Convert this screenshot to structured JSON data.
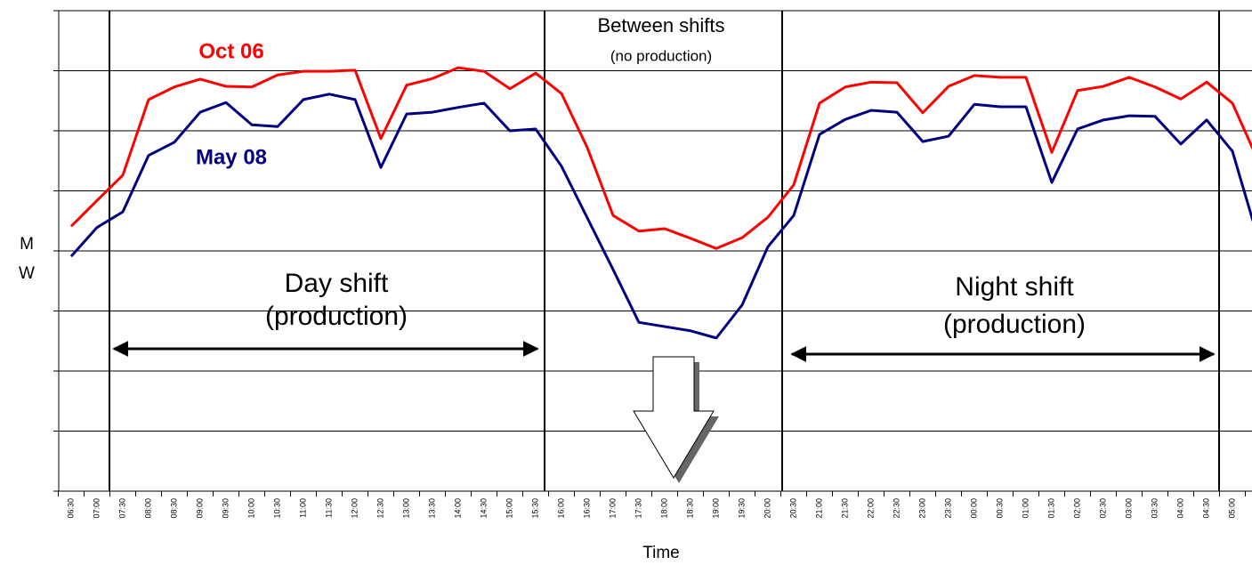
{
  "chart_data": {
    "type": "line",
    "xlabel": "Time",
    "ylabel": [
      "M",
      "W"
    ],
    "categories": [
      "06:30",
      "07:00",
      "07:30",
      "08:00",
      "08:30",
      "09:00",
      "09:30",
      "10:00",
      "10:30",
      "11:00",
      "11:30",
      "12:00",
      "12:30",
      "13:00",
      "13:30",
      "14:00",
      "14:30",
      "15:00",
      "15:30",
      "16:00",
      "16:30",
      "17:00",
      "17:30",
      "18:00",
      "18:30",
      "19:00",
      "19:30",
      "20:00",
      "20:30",
      "21:00",
      "21:30",
      "22:00",
      "22:30",
      "23:00",
      "23:30",
      "00:00",
      "00:30",
      "01:00",
      "01:30",
      "02:00",
      "02:30",
      "03:00",
      "03:30",
      "04:00",
      "04:30",
      "05:00",
      null
    ],
    "series": [
      {
        "name": "Oct 06",
        "color": "#ff0000",
        "values": [
          4.41,
          4.84,
          5.26,
          6.52,
          6.73,
          6.86,
          6.74,
          6.73,
          6.93,
          6.99,
          6.99,
          7.01,
          5.87,
          6.76,
          6.87,
          7.05,
          6.99,
          6.7,
          6.96,
          6.62,
          5.72,
          4.59,
          4.33,
          4.37,
          4.21,
          4.04,
          4.22,
          4.56,
          5.1,
          6.46,
          6.73,
          6.81,
          6.8,
          6.3,
          6.74,
          6.92,
          6.89,
          6.89,
          5.64,
          6.67,
          6.74,
          6.89,
          6.73,
          6.53,
          6.81,
          6.46,
          5.5
        ]
      },
      {
        "name": "May 08",
        "color": "#000080",
        "values": [
          3.91,
          4.39,
          4.65,
          5.59,
          5.81,
          6.31,
          6.47,
          6.1,
          6.07,
          6.52,
          6.61,
          6.52,
          5.39,
          6.28,
          6.31,
          6.39,
          6.46,
          6.0,
          6.03,
          5.41,
          4.55,
          3.69,
          2.81,
          2.74,
          2.67,
          2.55,
          3.1,
          4.07,
          4.59,
          5.94,
          6.19,
          6.34,
          6.31,
          5.82,
          5.91,
          6.44,
          6.4,
          6.4,
          5.14,
          6.03,
          6.18,
          6.25,
          6.24,
          5.78,
          6.18,
          5.66,
          4.2
        ]
      }
    ],
    "ylim": [
      0,
      8
    ],
    "yticks": [
      0,
      1,
      2,
      3,
      4,
      5,
      6,
      7,
      8
    ],
    "grid": true,
    "annotations": [
      "Between shifts",
      "(no production)",
      "Day shift",
      "(production)",
      "Night shift",
      "(production)"
    ]
  }
}
